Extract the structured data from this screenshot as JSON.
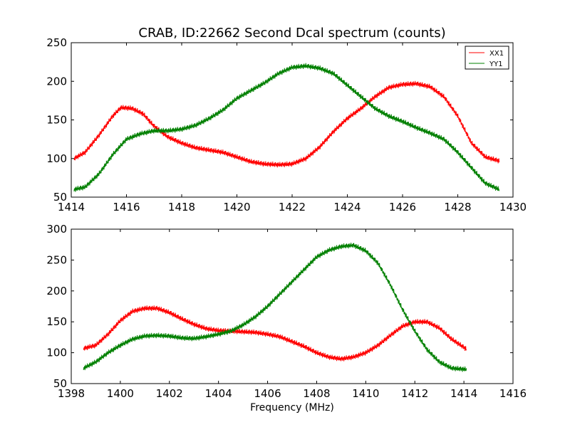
{
  "chart_data": [
    {
      "type": "line",
      "title": "CRAB, ID:22662 Second Dcal spectrum (counts)",
      "xlabel": "",
      "ylabel": "",
      "xlim": [
        1414,
        1430
      ],
      "ylim": [
        50,
        250
      ],
      "xticks": [
        1414,
        1416,
        1418,
        1420,
        1422,
        1424,
        1426,
        1428,
        1430
      ],
      "yticks": [
        50,
        100,
        150,
        200,
        250
      ],
      "grid": false,
      "legend": {
        "position": "top-right",
        "entries": [
          "XX1",
          "YY1"
        ]
      },
      "series": [
        {
          "name": "XX1",
          "color": "#ff0000",
          "x": [
            1414.1,
            1414.5,
            1415.0,
            1415.5,
            1415.8,
            1416.2,
            1416.6,
            1417.0,
            1417.5,
            1418.0,
            1418.5,
            1419.0,
            1419.5,
            1420.0,
            1420.5,
            1421.0,
            1421.5,
            1422.0,
            1422.5,
            1423.0,
            1423.5,
            1424.0,
            1424.5,
            1425.0,
            1425.5,
            1426.0,
            1426.5,
            1427.0,
            1427.5,
            1428.0,
            1428.5,
            1429.0,
            1429.5
          ],
          "y": [
            100,
            108,
            130,
            155,
            166,
            165,
            158,
            142,
            128,
            120,
            114,
            111,
            108,
            102,
            96,
            93,
            92,
            93,
            100,
            115,
            135,
            152,
            165,
            180,
            192,
            196,
            197,
            193,
            180,
            155,
            120,
            102,
            97
          ]
        },
        {
          "name": "YY1",
          "color": "#008000",
          "x": [
            1414.1,
            1414.5,
            1415.0,
            1415.5,
            1416.0,
            1416.5,
            1417.0,
            1417.5,
            1418.0,
            1418.5,
            1419.0,
            1419.5,
            1420.0,
            1420.5,
            1421.0,
            1421.5,
            1422.0,
            1422.5,
            1423.0,
            1423.5,
            1424.0,
            1424.5,
            1425.0,
            1425.5,
            1426.0,
            1426.5,
            1427.0,
            1427.5,
            1428.0,
            1428.5,
            1429.0,
            1429.5
          ],
          "y": [
            60,
            63,
            80,
            105,
            125,
            132,
            136,
            136,
            138,
            143,
            152,
            163,
            178,
            188,
            198,
            210,
            218,
            220,
            217,
            210,
            195,
            180,
            165,
            155,
            148,
            140,
            133,
            125,
            108,
            88,
            68,
            60
          ]
        }
      ]
    },
    {
      "type": "line",
      "title": "",
      "xlabel": "Frequency (MHz)",
      "ylabel": "",
      "xlim": [
        1398,
        1416
      ],
      "ylim": [
        50,
        300
      ],
      "xticks": [
        1398,
        1400,
        1402,
        1404,
        1406,
        1408,
        1410,
        1412,
        1414,
        1416
      ],
      "yticks": [
        50,
        100,
        150,
        200,
        250,
        300
      ],
      "grid": false,
      "series": [
        {
          "name": "XX1",
          "color": "#ff0000",
          "x": [
            1398.5,
            1399.0,
            1399.5,
            1400.0,
            1400.5,
            1401.0,
            1401.5,
            1402.0,
            1402.5,
            1403.0,
            1403.5,
            1404.0,
            1404.5,
            1405.0,
            1405.5,
            1406.0,
            1406.5,
            1407.0,
            1407.5,
            1408.0,
            1408.5,
            1409.0,
            1409.5,
            1410.0,
            1410.5,
            1411.0,
            1411.5,
            1412.0,
            1412.5,
            1413.0,
            1413.5,
            1414.1
          ],
          "y": [
            107,
            112,
            130,
            152,
            167,
            172,
            172,
            165,
            155,
            146,
            139,
            136,
            135,
            134,
            133,
            130,
            126,
            118,
            110,
            100,
            93,
            90,
            93,
            100,
            112,
            128,
            143,
            150,
            150,
            140,
            122,
            106
          ]
        },
        {
          "name": "YY1",
          "color": "#008000",
          "x": [
            1398.5,
            1399.0,
            1399.5,
            1400.0,
            1400.5,
            1401.0,
            1401.5,
            1402.0,
            1402.5,
            1403.0,
            1403.5,
            1404.0,
            1404.5,
            1405.0,
            1405.5,
            1406.0,
            1406.5,
            1407.0,
            1407.5,
            1408.0,
            1408.5,
            1409.0,
            1409.5,
            1410.0,
            1410.5,
            1411.0,
            1411.5,
            1412.0,
            1412.5,
            1413.0,
            1413.5,
            1414.1
          ],
          "y": [
            75,
            85,
            100,
            112,
            122,
            127,
            128,
            127,
            124,
            123,
            126,
            130,
            135,
            145,
            158,
            175,
            195,
            215,
            235,
            255,
            266,
            272,
            274,
            265,
            245,
            210,
            170,
            135,
            105,
            85,
            75,
            73
          ]
        }
      ]
    }
  ]
}
